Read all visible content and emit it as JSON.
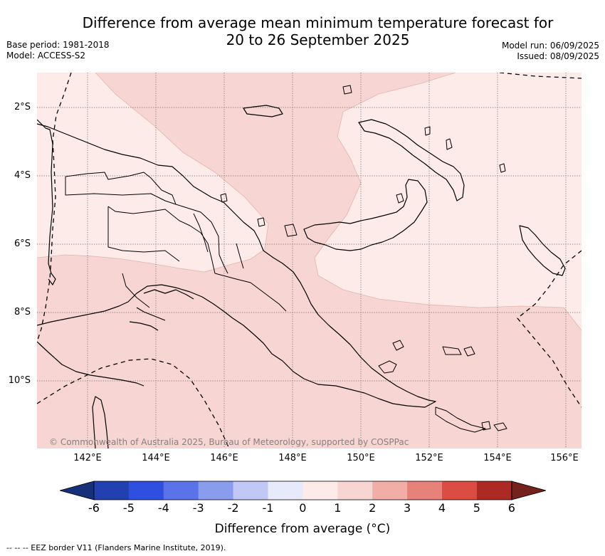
{
  "header": {
    "title_line1": "Difference from average mean minimum temperature forecast for",
    "title_line2": "20 to 26 September 2025",
    "base_period": "Base period: 1981-2018",
    "model": "Model: ACCESS-S2",
    "model_run": "Model run: 06/09/2025",
    "issued": "Issued: 08/09/2025"
  },
  "map": {
    "lat_labels": [
      "2°S",
      "4°S",
      "6°S",
      "8°S",
      "10°S"
    ],
    "lon_labels": [
      "142°E",
      "144°E",
      "146°E",
      "148°E",
      "150°E",
      "152°E",
      "154°E",
      "156°E"
    ],
    "copyright": "© Commonwealth of Australia 2025, Bureau of Meteorology, supported by COSPPac",
    "fill_colors": {
      "zero_to_one": "#fcebe8",
      "one_to_two": "#f6d5d2"
    },
    "coast_color": "#000000"
  },
  "legend": {
    "ticks": [
      "-6",
      "-5",
      "-4",
      "-3",
      "-2",
      "-1",
      "0",
      "1",
      "2",
      "3",
      "4",
      "5",
      "6"
    ],
    "colors": [
      "#17307a",
      "#2340b0",
      "#2f4fe0",
      "#5b73e8",
      "#8a9cee",
      "#c1c8f5",
      "#e7eafb",
      "#fcebe8",
      "#f6d5d2",
      "#f0aea7",
      "#e7827a",
      "#db4c42",
      "#ac2a23",
      "#75211c"
    ],
    "label": "Difference from average (°C)"
  },
  "footnote": "-- -- -- EEZ border V11 (Flanders Marine Institute, 2019)."
}
